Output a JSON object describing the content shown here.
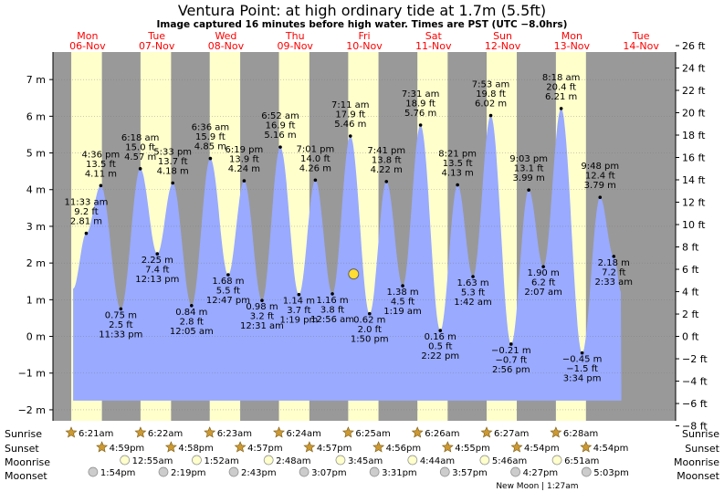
{
  "chart_data": {
    "type": "area",
    "title": "Ventura Point: at high  ordinary tide at 1.7m (5.5ft)",
    "subtitle": "Image captured 16 minutes before high water. Times are PST (UTC −8.0hrs)",
    "ylabel_left_unit": "m",
    "ylabel_right_unit": "ft",
    "ylim_m": [
      -2.3,
      7.75
    ],
    "y_ticks_m": [
      -2,
      -1,
      0,
      1,
      2,
      3,
      4,
      5,
      6,
      7
    ],
    "y_ticks_m_labels": [
      "−2 m",
      "−1 m",
      "0 m",
      "1 m",
      "2 m",
      "3 m",
      "4 m",
      "5 m",
      "6 m",
      "7 m"
    ],
    "y_ticks_ft": [
      -8,
      -6,
      -4,
      -2,
      0,
      2,
      4,
      6,
      8,
      10,
      12,
      14,
      16,
      18,
      20,
      22,
      24,
      26
    ],
    "y_ticks_ft_labels": [
      "−8 ft",
      "−6 ft",
      "−4 ft",
      "−2 ft",
      "0 ft",
      "2 ft",
      "4 ft",
      "6 ft",
      "8 ft",
      "10 ft",
      "12 ft",
      "14 ft",
      "16 ft",
      "18 ft",
      "20 ft",
      "22 ft",
      "24 ft",
      "26 ft"
    ],
    "x_unit": "hours from 00:00 Mon 06-Nov",
    "days": [
      {
        "dow": "Mon",
        "date": "06-Nov"
      },
      {
        "dow": "Tue",
        "date": "07-Nov"
      },
      {
        "dow": "Wed",
        "date": "08-Nov"
      },
      {
        "dow": "Thu",
        "date": "09-Nov"
      },
      {
        "dow": "Fri",
        "date": "10-Nov"
      },
      {
        "dow": "Sat",
        "date": "11-Nov"
      },
      {
        "dow": "Sun",
        "date": "12-Nov"
      },
      {
        "dow": "Mon",
        "date": "13-Nov"
      },
      {
        "dow": "Tue",
        "date": "14-Nov"
      }
    ],
    "tides": [
      {
        "t": 11.55,
        "h": 2.81,
        "ft": "9.2 ft",
        "time": "11:33 am",
        "type": "high"
      },
      {
        "t": 16.6,
        "h": 4.11,
        "ft": "13.5 ft",
        "time": "4:36 pm",
        "type": "high"
      },
      {
        "t": 23.55,
        "h": 0.75,
        "ft": "2.5 ft",
        "time": "11:33 pm",
        "type": "low"
      },
      {
        "t": 30.3,
        "h": 4.57,
        "ft": "15.0 ft",
        "time": "6:18 am",
        "type": "high"
      },
      {
        "t": 36.2,
        "h": 2.25,
        "ft": "7.4 ft",
        "time": "12:13 pm",
        "type": "low"
      },
      {
        "t": 41.55,
        "h": 4.18,
        "ft": "13.7 ft",
        "time": "5:33 pm",
        "type": "high"
      },
      {
        "t": 48.08,
        "h": 0.84,
        "ft": "2.8 ft",
        "time": "12:05 am",
        "type": "low"
      },
      {
        "t": 54.6,
        "h": 4.85,
        "ft": "15.9 ft",
        "time": "6:36 am",
        "type": "high"
      },
      {
        "t": 60.78,
        "h": 1.68,
        "ft": "5.5 ft",
        "time": "12:47 pm",
        "type": "low"
      },
      {
        "t": 66.32,
        "h": 4.24,
        "ft": "13.9 ft",
        "time": "6:19 pm",
        "type": "high"
      },
      {
        "t": 72.52,
        "h": 0.98,
        "ft": "3.2 ft",
        "time": "12:31 am",
        "type": "low"
      },
      {
        "t": 78.87,
        "h": 5.16,
        "ft": "16.9 ft",
        "time": "6:52 am",
        "type": "high"
      },
      {
        "t": 85.32,
        "h": 1.14,
        "ft": "3.7 ft",
        "time": "1:19 pm",
        "type": "low"
      },
      {
        "t": 91.02,
        "h": 4.26,
        "ft": "14.0 ft",
        "time": "7:01 pm",
        "type": "high"
      },
      {
        "t": 96.93,
        "h": 1.16,
        "ft": "3.8 ft",
        "time": "12:56 am",
        "type": "low"
      },
      {
        "t": 103.18,
        "h": 5.46,
        "ft": "17.9 ft",
        "time": "7:11 am",
        "type": "high"
      },
      {
        "t": 109.83,
        "h": 0.62,
        "ft": "2.0 ft",
        "time": "1:50 pm",
        "type": "low"
      },
      {
        "t": 115.68,
        "h": 4.22,
        "ft": "13.8 ft",
        "time": "7:41 pm",
        "type": "high"
      },
      {
        "t": 121.32,
        "h": 1.38,
        "ft": "4.5 ft",
        "time": "1:19 am",
        "type": "low"
      },
      {
        "t": 127.52,
        "h": 5.76,
        "ft": "18.9 ft",
        "time": "7:31 am",
        "type": "high"
      },
      {
        "t": 134.37,
        "h": 0.16,
        "ft": "0.5 ft",
        "time": "2:22 pm",
        "type": "low"
      },
      {
        "t": 140.35,
        "h": 4.13,
        "ft": "13.5 ft",
        "time": "8:21 pm",
        "type": "high"
      },
      {
        "t": 145.7,
        "h": 1.63,
        "ft": "5.3 ft",
        "time": "1:42 am",
        "type": "low"
      },
      {
        "t": 151.88,
        "h": 6.02,
        "ft": "19.8 ft",
        "time": "7:53 am",
        "type": "high"
      },
      {
        "t": 158.93,
        "h": -0.21,
        "ft": "−0.7 ft",
        "time": "2:56 pm",
        "type": "low"
      },
      {
        "t": 165.05,
        "h": 3.99,
        "ft": "13.1 ft",
        "time": "9:03 pm",
        "type": "high"
      },
      {
        "t": 170.12,
        "h": 1.9,
        "ft": "6.2 ft",
        "time": "2:07 am",
        "type": "low"
      },
      {
        "t": 176.3,
        "h": 6.21,
        "ft": "20.4 ft",
        "time": "8:18 am",
        "type": "high"
      },
      {
        "t": 183.57,
        "h": -0.45,
        "ft": "−1.5 ft",
        "time": "3:34 pm",
        "type": "low"
      },
      {
        "t": 189.8,
        "h": 3.79,
        "ft": "12.4 ft",
        "time": "9:48 pm",
        "type": "high"
      },
      {
        "t": 194.55,
        "h": 2.18,
        "ft": "7.2 ft",
        "time": "2:33 am",
        "type": "low"
      }
    ],
    "tide_curve": {
      "start_t": 7.0,
      "end_t": 197.2,
      "start_h": 1.3,
      "end_h": 1.2,
      "lowest_water_m": -1.75
    },
    "current_marker": {
      "t": 104.3,
      "h": 1.7
    },
    "daylight": [
      {
        "rise": 6.35,
        "set": 16.98
      },
      {
        "rise": 30.37,
        "set": 40.97
      },
      {
        "rise": 54.38,
        "set": 64.95
      },
      {
        "rise": 78.4,
        "set": 88.95
      },
      {
        "rise": 102.42,
        "set": 112.93
      },
      {
        "rise": 126.43,
        "set": 136.92
      },
      {
        "rise": 150.45,
        "set": 160.9
      },
      {
        "rise": 174.47,
        "set": 184.9
      }
    ],
    "sun_moon": {
      "rows": [
        "Sunrise",
        "Sunset",
        "Moonrise",
        "Moonset"
      ],
      "sunrise": [
        {
          "t": 6.35,
          "time": "6:21am"
        },
        {
          "t": 30.37,
          "time": "6:22am"
        },
        {
          "t": 54.38,
          "time": "6:23am"
        },
        {
          "t": 78.4,
          "time": "6:24am"
        },
        {
          "t": 102.42,
          "time": "6:25am"
        },
        {
          "t": 126.43,
          "time": "6:26am"
        },
        {
          "t": 150.45,
          "time": "6:27am"
        },
        {
          "t": 174.47,
          "time": "6:28am"
        }
      ],
      "sunset": [
        {
          "t": 16.98,
          "time": "4:59pm"
        },
        {
          "t": 40.97,
          "time": "4:58pm"
        },
        {
          "t": 64.95,
          "time": "4:57pm"
        },
        {
          "t": 88.95,
          "time": "4:57pm"
        },
        {
          "t": 112.93,
          "time": "4:56pm"
        },
        {
          "t": 136.92,
          "time": "4:55pm"
        },
        {
          "t": 160.9,
          "time": "4:54pm"
        },
        {
          "t": 184.9,
          "time": "4:54pm"
        }
      ],
      "moonrise": [
        {
          "t": 24.92,
          "time": "12:55am"
        },
        {
          "t": 49.87,
          "time": "1:52am"
        },
        {
          "t": 74.8,
          "time": "2:48am"
        },
        {
          "t": 99.75,
          "time": "3:45am"
        },
        {
          "t": 124.73,
          "time": "4:44am"
        },
        {
          "t": 149.77,
          "time": "5:46am"
        },
        {
          "t": 174.85,
          "time": "6:51am"
        }
      ],
      "moonset": [
        {
          "t": 13.9,
          "time": "1:54pm"
        },
        {
          "t": 38.32,
          "time": "2:19pm"
        },
        {
          "t": 62.72,
          "time": "2:43pm"
        },
        {
          "t": 87.12,
          "time": "3:07pm"
        },
        {
          "t": 111.52,
          "time": "3:31pm"
        },
        {
          "t": 135.95,
          "time": "3:57pm"
        },
        {
          "t": 160.45,
          "time": "4:27pm"
        },
        {
          "t": 185.05,
          "time": "5:03pm"
        }
      ],
      "note": {
        "t": 168.0,
        "text": "New Moon | 1:27am"
      }
    },
    "colors": {
      "night": "#999999",
      "day": "#ffffcc",
      "water": "#99aaff",
      "day_label": "#ff0000",
      "marker": "#ffdd33",
      "star": "#cc9933",
      "moon_rise_fill": "#ffffcc",
      "moon_set_fill": "#cccccc"
    }
  }
}
